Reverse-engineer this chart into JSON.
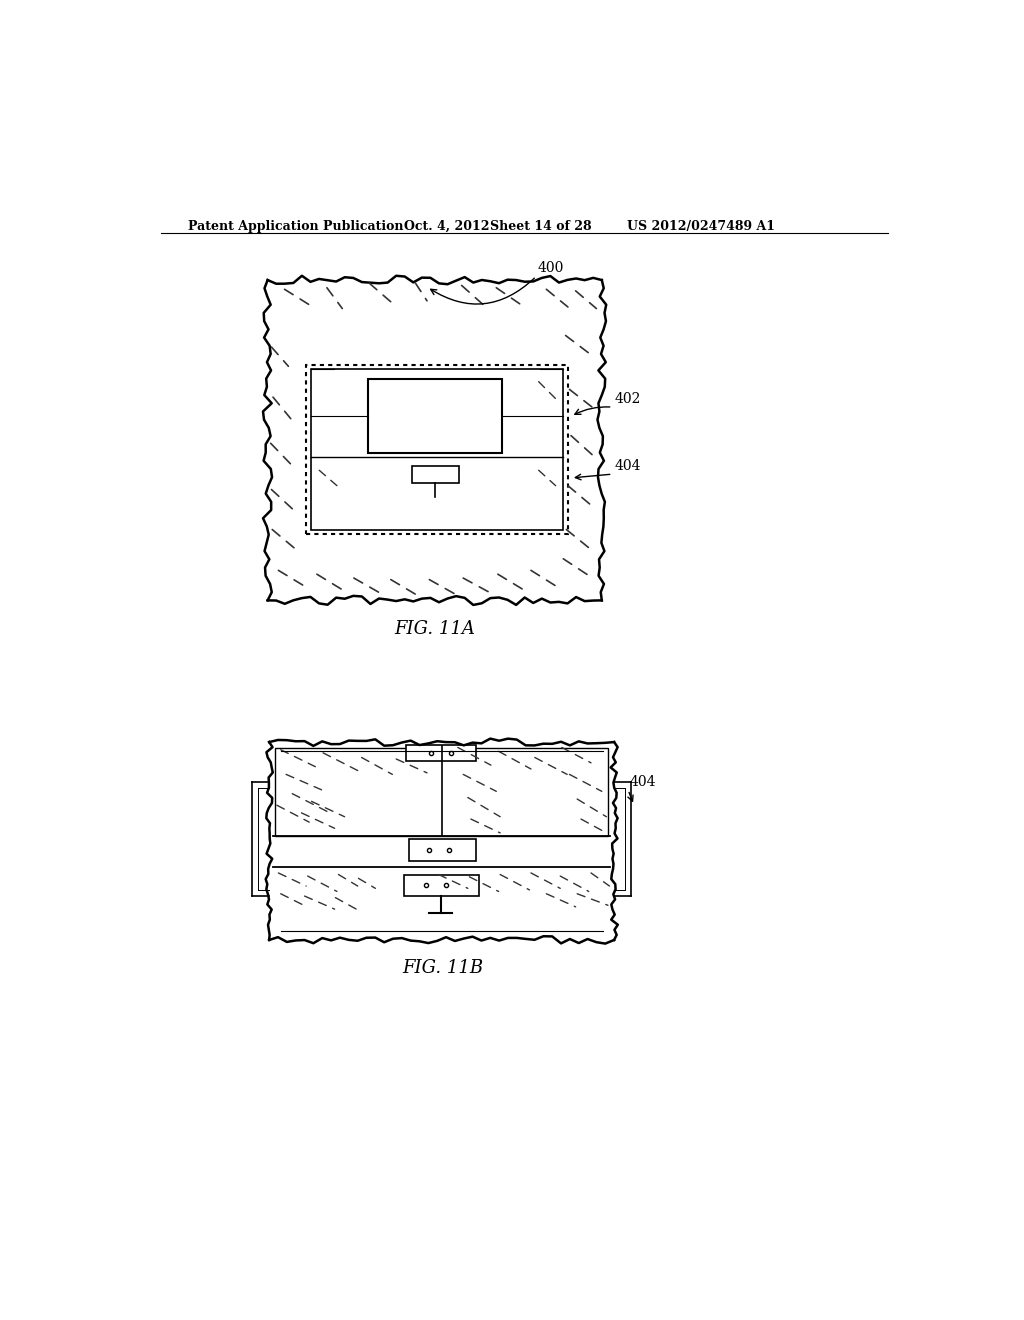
{
  "background_color": "#ffffff",
  "header_text": "Patent Application Publication",
  "header_date": "Oct. 4, 2012",
  "header_sheet": "Sheet 14 of 28",
  "header_patent": "US 2012/0247489 A1",
  "fig_label_A": "FIG. 11A",
  "fig_label_B": "FIG. 11B",
  "label_400": "400",
  "label_402": "402",
  "label_404": "404"
}
